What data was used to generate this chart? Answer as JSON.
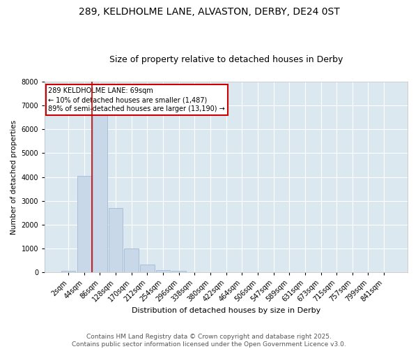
{
  "title": "289, KELDHOLME LANE, ALVASTON, DERBY, DE24 0ST",
  "subtitle": "Size of property relative to detached houses in Derby",
  "xlabel": "Distribution of detached houses by size in Derby",
  "ylabel": "Number of detached properties",
  "bar_labels": [
    "2sqm",
    "44sqm",
    "86sqm",
    "128sqm",
    "170sqm",
    "212sqm",
    "254sqm",
    "296sqm",
    "338sqm",
    "380sqm",
    "422sqm",
    "464sqm",
    "506sqm",
    "547sqm",
    "589sqm",
    "631sqm",
    "673sqm",
    "715sqm",
    "757sqm",
    "799sqm",
    "841sqm"
  ],
  "bar_values": [
    60,
    4050,
    6600,
    2700,
    1000,
    330,
    100,
    60,
    20,
    0,
    0,
    0,
    0,
    0,
    0,
    0,
    0,
    0,
    0,
    0,
    0
  ],
  "bar_color": "#c8d8e8",
  "bar_edgecolor": "#a8c0d8",
  "ylim": [
    0,
    8000
  ],
  "yticks": [
    0,
    1000,
    2000,
    3000,
    4000,
    5000,
    6000,
    7000,
    8000
  ],
  "vline_x_index": 1.5,
  "vline_color": "#cc0000",
  "annotation_line1": "289 KELDHOLME LANE: 69sqm",
  "annotation_line2": "← 10% of detached houses are smaller (1,487)",
  "annotation_line3": "89% of semi-detached houses are larger (13,190) →",
  "annotation_box_color": "#cc0000",
  "background_color": "#dce8f0",
  "grid_color": "#ffffff",
  "fig_background": "#ffffff",
  "footer_line1": "Contains HM Land Registry data © Crown copyright and database right 2025.",
  "footer_line2": "Contains public sector information licensed under the Open Government Licence v3.0.",
  "title_fontsize": 10,
  "subtitle_fontsize": 9,
  "footer_fontsize": 6.5
}
